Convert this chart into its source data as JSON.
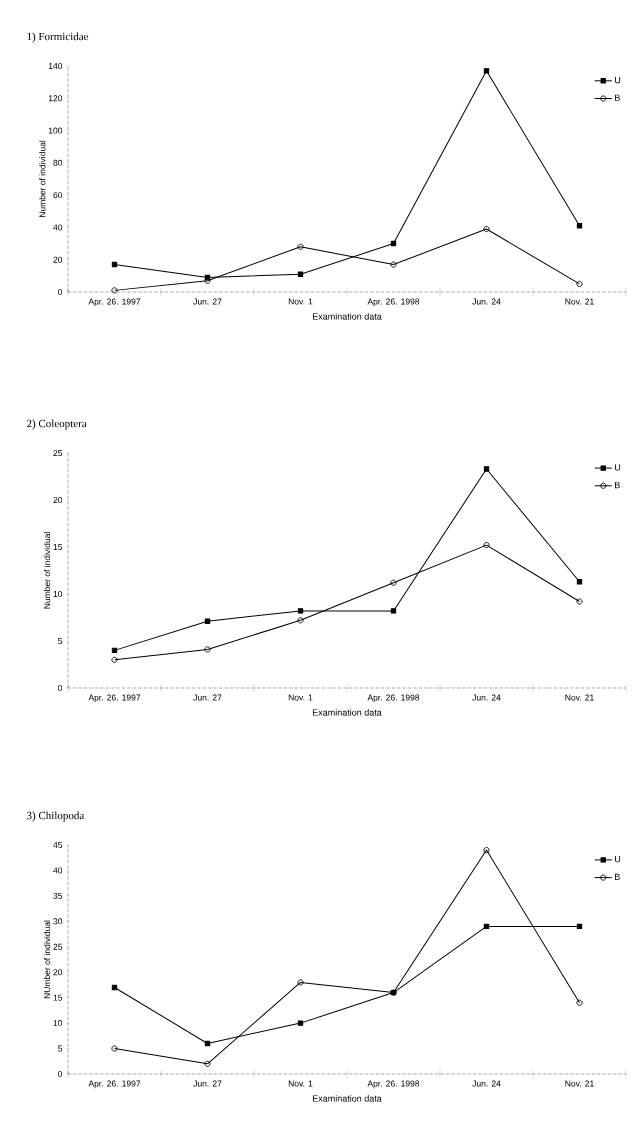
{
  "chart_data": [
    {
      "type": "line",
      "title": "1) Formicidae",
      "xlabel": "Examination data",
      "ylabel": "Number of individual",
      "categories": [
        "Apr. 26. 1997",
        "Jun. 27",
        "Nov. 1",
        "Apr. 26. 1998",
        "Jun. 24",
        "Nov. 21"
      ],
      "series": [
        {
          "name": "U",
          "color": "#000000",
          "marker": "square",
          "values": [
            17,
            9,
            11,
            30,
            137,
            41
          ]
        },
        {
          "name": "B",
          "color": "#000000",
          "marker": "circle",
          "values": [
            1,
            7,
            28,
            17,
            39,
            5
          ]
        }
      ],
      "ylim": [
        0,
        140
      ],
      "yticks": [
        0,
        20,
        40,
        60,
        80,
        100,
        120,
        140
      ],
      "legend": "top right"
    },
    {
      "type": "line",
      "title": "2) Coleoptera",
      "xlabel": "Examination data",
      "ylabel": "Number of individual",
      "categories": [
        "Apr. 26. 1997",
        "Jun. 27",
        "Nov. 1",
        "Apr. 26. 1998",
        "Jun. 24",
        "Nov. 21"
      ],
      "series": [
        {
          "name": "U",
          "color": "#000000",
          "marker": "square",
          "values": [
            4,
            7.1,
            8.2,
            8.2,
            23.3,
            11.3
          ]
        },
        {
          "name": "B",
          "color": "#000000",
          "marker": "circle",
          "values": [
            3,
            4.1,
            7.2,
            11.2,
            15.2,
            9.2
          ]
        }
      ],
      "ylim": [
        0,
        25
      ],
      "yticks": [
        0,
        5,
        10,
        15,
        20,
        25
      ],
      "legend": "top right"
    },
    {
      "type": "line",
      "title": "3) Chilopoda",
      "xlabel": "Examination data",
      "ylabel": "NUmber of individual",
      "categories": [
        "Apr. 26. 1997",
        "Jun. 27",
        "Nov. 1",
        "Apr. 26. 1998",
        "Jun. 24",
        "Nov. 21"
      ],
      "series": [
        {
          "name": "U",
          "color": "#000000",
          "marker": "square",
          "values": [
            17,
            6,
            10,
            16,
            29,
            29
          ]
        },
        {
          "name": "B",
          "color": "#000000",
          "marker": "circle",
          "values": [
            5,
            2,
            18,
            16,
            44,
            14
          ]
        }
      ],
      "ylim": [
        0,
        45
      ],
      "yticks": [
        0,
        5,
        10,
        15,
        20,
        25,
        30,
        35,
        40,
        45
      ],
      "legend": "top right"
    }
  ]
}
